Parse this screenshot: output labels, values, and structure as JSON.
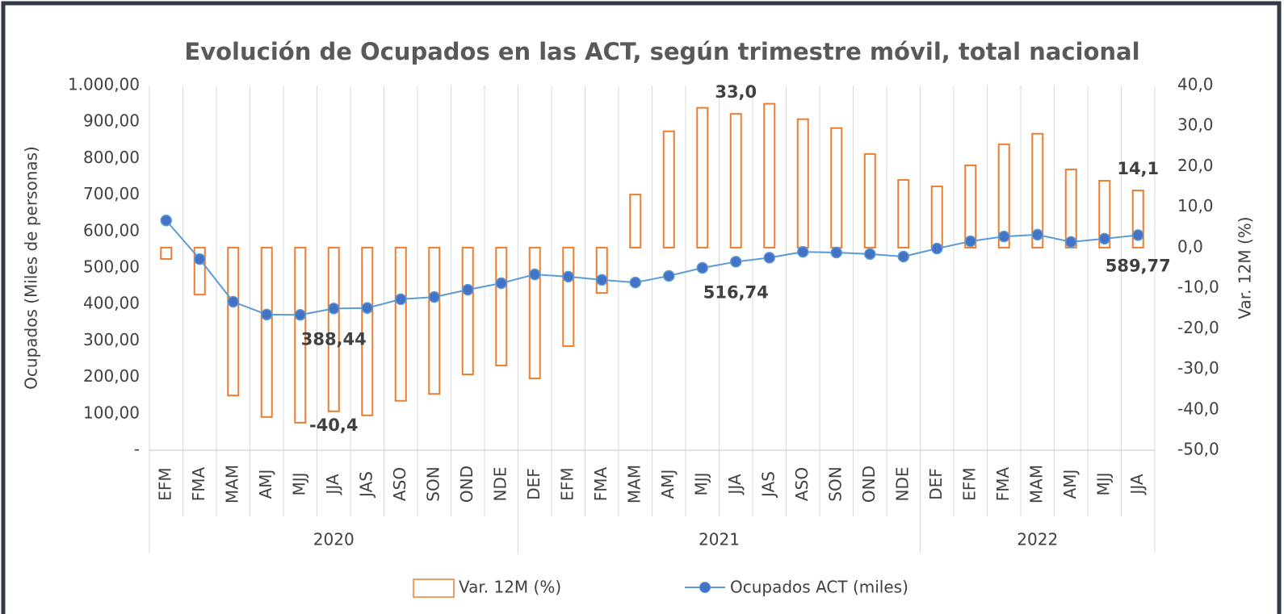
{
  "chart_data": {
    "type": "bar_line",
    "title": "Evolución de Ocupados en las ACT, según trimestre móvil, total nacional",
    "ylabel": "Ocupados (Miles de personas)",
    "y2label": "Var. 12M (%)",
    "categories": [
      "EFM",
      "FMA",
      "MAM",
      "AMJ",
      "MJJ",
      "JJA",
      "JAS",
      "ASO",
      "SON",
      "OND",
      "NDE",
      "DEF",
      "EFM",
      "FMA",
      "MAM",
      "AMJ",
      "MJJ",
      "JJA",
      "JAS",
      "ASO",
      "SON",
      "OND",
      "NDE",
      "DEF",
      "EFM",
      "FMA",
      "MAM",
      "AMJ",
      "MJJ",
      "JJA"
    ],
    "x_groups": [
      {
        "name": "2020",
        "count": 11
      },
      {
        "name": "2021",
        "count": 12
      },
      {
        "name": "2022",
        "count": 7
      }
    ],
    "series": [
      {
        "name": "Var. 12M (%)",
        "type": "bar",
        "axis": "y2",
        "color": "#ed7d31",
        "values": [
          -2.8,
          -11.6,
          -36.5,
          -41.8,
          -43.2,
          -40.4,
          -41.4,
          -37.8,
          -36.1,
          -31.3,
          -29.1,
          -32.3,
          -24.3,
          -11.2,
          13.1,
          28.7,
          34.5,
          33.0,
          35.5,
          31.7,
          29.5,
          23.1,
          16.7,
          15.1,
          20.3,
          25.5,
          28.1,
          19.3,
          16.5,
          14.1
        ],
        "value_labels": [
          null,
          null,
          null,
          null,
          null,
          "-40,4",
          null,
          null,
          null,
          null,
          null,
          null,
          null,
          null,
          null,
          null,
          null,
          "33,0",
          null,
          null,
          null,
          null,
          null,
          null,
          null,
          null,
          null,
          null,
          null,
          "14,1"
        ]
      },
      {
        "name": "Ocupados ACT (miles)",
        "type": "line",
        "axis": "y",
        "color": "#5b9bd5",
        "marker_color": "#4472c4",
        "values": [
          630,
          524,
          407,
          372,
          371,
          388.44,
          390,
          414,
          420,
          440,
          458,
          482,
          476,
          467,
          460,
          478,
          500,
          516.74,
          528,
          544,
          542,
          538,
          531,
          553,
          573,
          586,
          591,
          571,
          580,
          589.77
        ],
        "value_labels": [
          null,
          null,
          null,
          null,
          null,
          "388,44",
          null,
          null,
          null,
          null,
          null,
          null,
          null,
          null,
          null,
          null,
          null,
          "516,74",
          null,
          null,
          null,
          null,
          null,
          null,
          null,
          null,
          null,
          null,
          null,
          "589,77"
        ]
      }
    ],
    "ylim": [
      0,
      1000
    ],
    "yticks": [
      {
        "value": 0,
        "label": "-"
      },
      {
        "value": 100,
        "label": "100,00"
      },
      {
        "value": 200,
        "label": "200,00"
      },
      {
        "value": 300,
        "label": "300,00"
      },
      {
        "value": 400,
        "label": "400,00"
      },
      {
        "value": 500,
        "label": "500,00"
      },
      {
        "value": 600,
        "label": "600,00"
      },
      {
        "value": 700,
        "label": "700,00"
      },
      {
        "value": 800,
        "label": "800,00"
      },
      {
        "value": 900,
        "label": "900,00"
      },
      {
        "value": 1000,
        "label": "1.000,00"
      }
    ],
    "y2lim": [
      -50,
      40
    ],
    "y2ticks": [
      {
        "value": -50,
        "label": "-50,0"
      },
      {
        "value": -40,
        "label": "-40,0"
      },
      {
        "value": -30,
        "label": "-30,0"
      },
      {
        "value": -20,
        "label": "-20,0"
      },
      {
        "value": -10,
        "label": "-10,0"
      },
      {
        "value": 0,
        "label": "0,0"
      },
      {
        "value": 10,
        "label": "10,0"
      },
      {
        "value": 20,
        "label": "20,0"
      },
      {
        "value": 30,
        "label": "30,0"
      },
      {
        "value": 40,
        "label": "40,0"
      }
    ],
    "legend": "bottom"
  }
}
